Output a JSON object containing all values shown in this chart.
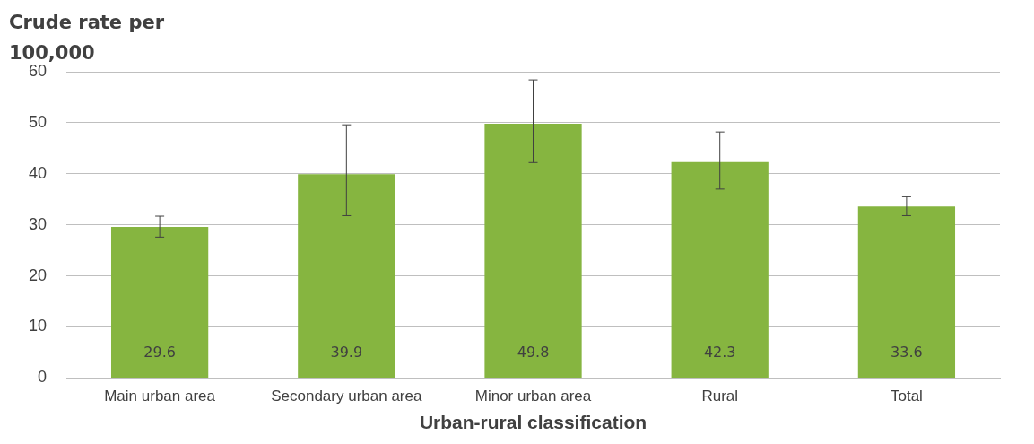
{
  "chart_data": {
    "type": "bar",
    "ylabel": "Crude rate per 100,000",
    "xlabel": "Urban-rural classification",
    "categories": [
      "Main urban area",
      "Secondary urban area",
      "Minor urban area",
      "Rural",
      "Total"
    ],
    "values": [
      29.6,
      39.9,
      49.8,
      42.3,
      33.6
    ],
    "errors": [
      [
        27.6,
        31.7
      ],
      [
        31.8,
        49.6
      ],
      [
        42.2,
        58.4
      ],
      [
        37.0,
        48.2
      ],
      [
        31.8,
        35.5
      ]
    ],
    "color": "#86b540",
    "data_labels": true,
    "ylim": [
      0,
      60
    ],
    "yticks": [
      0,
      10,
      20,
      30,
      40,
      50,
      60
    ],
    "grid": "y",
    "legend": false
  }
}
